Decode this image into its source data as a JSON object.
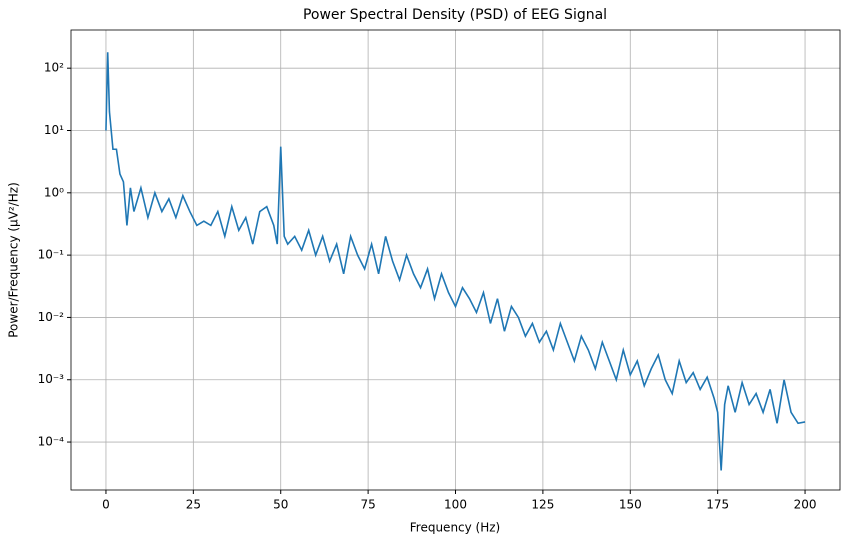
{
  "chart_data": {
    "type": "line",
    "title": "Power Spectral Density (PSD) of EEG Signal",
    "x_label": "Frequency (Hz)",
    "y_label": "Power/Frequency (µV²/Hz)",
    "x": [
      0,
      0.5,
      1,
      2,
      3,
      4,
      5,
      6,
      7,
      8,
      10,
      12,
      14,
      16,
      18,
      20,
      22,
      24,
      26,
      28,
      30,
      32,
      34,
      36,
      38,
      40,
      42,
      44,
      46,
      48,
      49,
      50,
      51,
      52,
      54,
      56,
      58,
      60,
      62,
      64,
      66,
      68,
      70,
      72,
      74,
      76,
      78,
      80,
      82,
      84,
      86,
      88,
      90,
      92,
      94,
      96,
      98,
      100,
      102,
      104,
      106,
      108,
      110,
      112,
      114,
      116,
      118,
      120,
      122,
      124,
      126,
      128,
      130,
      132,
      134,
      136,
      138,
      140,
      142,
      144,
      146,
      148,
      150,
      152,
      154,
      156,
      158,
      160,
      162,
      164,
      166,
      168,
      170,
      172,
      174,
      175,
      176,
      177,
      178,
      180,
      182,
      184,
      186,
      188,
      190,
      192,
      194,
      196,
      198,
      200
    ],
    "series": [
      {
        "name": "PSD",
        "color": "#1f77b4",
        "values": [
          10,
          180,
          20,
          5,
          5,
          2,
          1.5,
          0.3,
          1.2,
          0.5,
          1.2,
          0.4,
          1.0,
          0.5,
          0.8,
          0.4,
          0.9,
          0.5,
          0.3,
          0.35,
          0.3,
          0.5,
          0.2,
          0.6,
          0.25,
          0.4,
          0.15,
          0.5,
          0.6,
          0.3,
          0.15,
          5.5,
          0.2,
          0.15,
          0.2,
          0.12,
          0.25,
          0.1,
          0.2,
          0.08,
          0.15,
          0.05,
          0.2,
          0.1,
          0.06,
          0.15,
          0.05,
          0.2,
          0.08,
          0.04,
          0.1,
          0.05,
          0.03,
          0.06,
          0.02,
          0.05,
          0.025,
          0.015,
          0.03,
          0.02,
          0.012,
          0.025,
          0.008,
          0.02,
          0.006,
          0.015,
          0.01,
          0.005,
          0.008,
          0.004,
          0.006,
          0.003,
          0.008,
          0.004,
          0.002,
          0.005,
          0.003,
          0.0015,
          0.004,
          0.002,
          0.001,
          0.003,
          0.0012,
          0.002,
          0.0008,
          0.0015,
          0.0025,
          0.001,
          0.0006,
          0.002,
          0.0009,
          0.0013,
          0.0007,
          0.0011,
          0.0005,
          0.0003,
          3.5e-05,
          0.0004,
          0.0008,
          0.0003,
          0.0009,
          0.0004,
          0.0006,
          0.0003,
          0.0007,
          0.0002,
          0.001,
          0.0003,
          0.0002,
          0.00021
        ]
      }
    ],
    "xlim": [
      -10,
      210
    ],
    "xticks": [
      0,
      25,
      50,
      75,
      100,
      125,
      150,
      175,
      200
    ],
    "ylim": [
      1.7e-05,
      410
    ],
    "log_y": true,
    "yticks": [
      {
        "value": 0.0001,
        "label": "10⁻⁴"
      },
      {
        "value": 0.001,
        "label": "10⁻³"
      },
      {
        "value": 0.01,
        "label": "10⁻²"
      },
      {
        "value": 0.1,
        "label": "10⁻¹"
      },
      {
        "value": 1,
        "label": "10⁰"
      },
      {
        "value": 10,
        "label": "10¹"
      },
      {
        "value": 100,
        "label": "10²"
      }
    ],
    "grid": true
  }
}
